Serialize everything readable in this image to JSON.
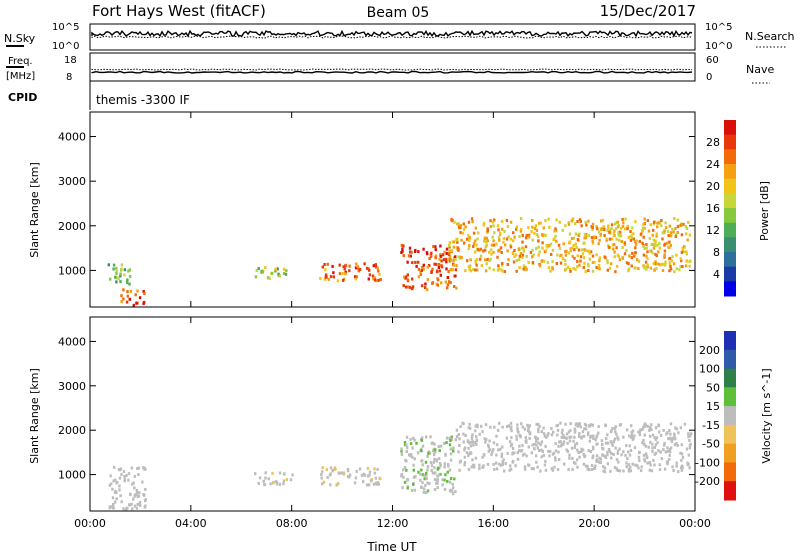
{
  "header": {
    "station": "Fort Hays West (fitACF)",
    "beam": "Beam 05",
    "date": "15/Dec/2017"
  },
  "summary_panels": {
    "nsky": {
      "label": "N.Sky",
      "tick_top": "10^5",
      "tick_bottom": "10^0"
    },
    "nsearch": {
      "label": "N.Search",
      "tick_top": "10^5",
      "tick_bottom": "10^0"
    },
    "freq": {
      "label_line1": "Freq.",
      "label_line2": "[MHz]",
      "tick_top": "18",
      "tick_bottom": "8"
    },
    "nave": {
      "label": "Nave",
      "tick_top": "60",
      "tick_bottom": "0"
    },
    "cpid": {
      "label": "CPID",
      "value": "themis -3300 IF"
    }
  },
  "colors": {
    "power_scale": [
      "#0000e6",
      "#1a3aa8",
      "#2f6f9e",
      "#3a8f72",
      "#4fae55",
      "#86c93f",
      "#c9d63a",
      "#f2c418",
      "#f5a010",
      "#f26a0a",
      "#e8380a",
      "#d8100a"
    ],
    "velocity_scale": [
      "#1e2fb4",
      "#2e5aa8",
      "#2f8048",
      "#5fbf3a",
      "#bdbdbd",
      "#f0c25a",
      "#f0a020",
      "#f26a0a",
      "#e01010"
    ],
    "velocity_ground_scatter": "#bdbdbd"
  },
  "chart_data": [
    {
      "type": "heatmap",
      "name": "power",
      "xlabel": "",
      "ylabel": "Slant Range [km]",
      "x_ticks": [
        "00:00",
        "04:00",
        "08:00",
        "12:00",
        "16:00",
        "20:00",
        "00:00"
      ],
      "y_ticks": [
        "1000",
        "2000",
        "3000",
        "4000"
      ],
      "xlim_hours": [
        0,
        24
      ],
      "ylim_km": [
        180,
        4550
      ],
      "colorbar": {
        "label": "Power [dB]",
        "ticks": [
          "4",
          "8",
          "12",
          "16",
          "20",
          "24",
          "28"
        ],
        "range": [
          0,
          30
        ]
      },
      "echo_regions": [
        {
          "t_start": 0.7,
          "t_end": 1.6,
          "r_min": 700,
          "r_max": 1200,
          "value": 12
        },
        {
          "t_start": 1.2,
          "t_end": 2.2,
          "r_min": 250,
          "r_max": 600,
          "value": 26
        },
        {
          "t_start": 6.5,
          "t_end": 7.8,
          "r_min": 800,
          "r_max": 1100,
          "value": 14
        },
        {
          "t_start": 9.0,
          "t_end": 11.5,
          "r_min": 800,
          "r_max": 1200,
          "value": 24
        },
        {
          "t_start": 12.3,
          "t_end": 14.5,
          "r_min": 600,
          "r_max": 1600,
          "value": 26
        },
        {
          "t_start": 14.2,
          "t_end": 23.8,
          "r_min": 1000,
          "r_max": 2200,
          "value": 20
        }
      ]
    },
    {
      "type": "heatmap",
      "name": "velocity",
      "xlabel": "Time UT",
      "ylabel": "Slant Range [km]",
      "x_ticks": [
        "00:00",
        "04:00",
        "08:00",
        "12:00",
        "16:00",
        "20:00",
        "00:00"
      ],
      "y_ticks": [
        "1000",
        "2000",
        "3000",
        "4000"
      ],
      "xlim_hours": [
        0,
        24
      ],
      "ylim_km": [
        180,
        4550
      ],
      "colorbar": {
        "label": "Velocity [m s^-1]",
        "ticks": [
          "200",
          "100",
          "50",
          "15",
          "-15",
          "-50",
          "-100",
          "-200"
        ],
        "range": [
          -250,
          250
        ]
      },
      "echo_regions": [
        {
          "t_start": 0.7,
          "t_end": 2.2,
          "r_min": 250,
          "r_max": 1200,
          "value": 0
        },
        {
          "t_start": 6.5,
          "t_end": 8.0,
          "r_min": 800,
          "r_max": 1100,
          "value": -30
        },
        {
          "t_start": 9.0,
          "t_end": 11.5,
          "r_min": 800,
          "r_max": 1200,
          "value": -40
        },
        {
          "t_start": 12.3,
          "t_end": 14.5,
          "r_min": 600,
          "r_max": 1900,
          "value": 40
        },
        {
          "t_start": 14.5,
          "t_end": 23.8,
          "r_min": 1100,
          "r_max": 2200,
          "value": 0
        }
      ]
    }
  ]
}
